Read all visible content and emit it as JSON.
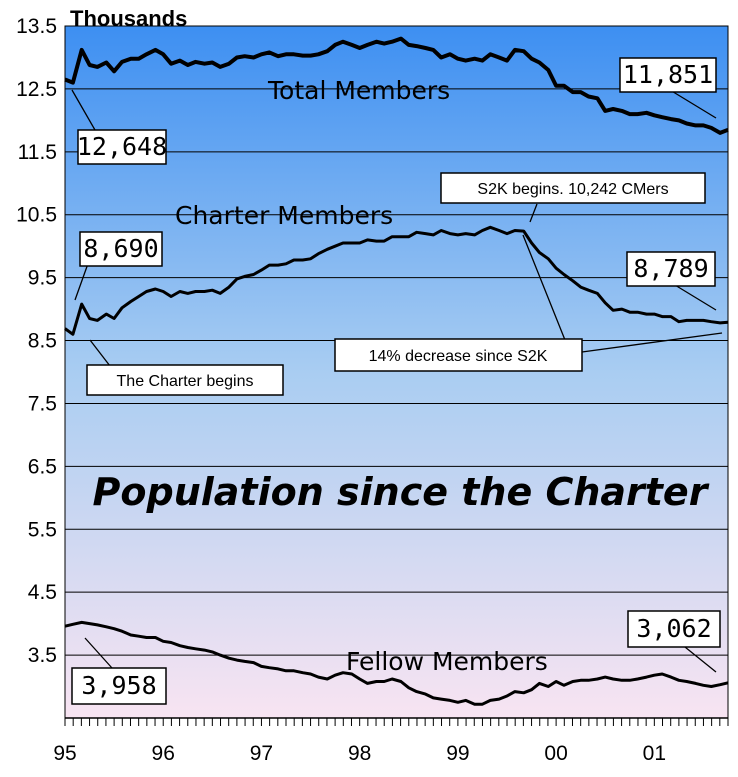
{
  "chart_data": {
    "type": "line",
    "unit_label": "Thousands",
    "title": "Population since the Charter",
    "ylim": [
      2.5,
      13.5
    ],
    "yticks": [
      "13.5",
      "12.5",
      "11.5",
      "10.5",
      "9.5",
      "8.5",
      "7.5",
      "6.5",
      "5.5",
      "4.5",
      "3.5"
    ],
    "ytick_values": [
      13.5,
      12.5,
      11.5,
      10.5,
      9.5,
      8.5,
      7.5,
      6.5,
      5.5,
      4.5,
      3.5
    ],
    "xticks": [
      "95",
      "96",
      "97",
      "98",
      "99",
      "00",
      "01"
    ],
    "xtick_values": [
      1995,
      1996,
      1997,
      1998,
      1999,
      2000,
      2001
    ],
    "xlim": [
      1995,
      2001.75
    ],
    "grid": true,
    "series": [
      {
        "name": "Total Members",
        "points": [
          [
            1995.0,
            12.65
          ],
          [
            1995.08,
            12.6
          ],
          [
            1995.17,
            13.12
          ],
          [
            1995.25,
            12.88
          ],
          [
            1995.33,
            12.85
          ],
          [
            1995.42,
            12.92
          ],
          [
            1995.5,
            12.78
          ],
          [
            1995.58,
            12.93
          ],
          [
            1995.67,
            12.98
          ],
          [
            1995.75,
            12.98
          ],
          [
            1995.83,
            13.05
          ],
          [
            1995.92,
            13.12
          ],
          [
            1996.0,
            13.05
          ],
          [
            1996.08,
            12.9
          ],
          [
            1996.17,
            12.95
          ],
          [
            1996.25,
            12.88
          ],
          [
            1996.33,
            12.93
          ],
          [
            1996.42,
            12.9
          ],
          [
            1996.5,
            12.92
          ],
          [
            1996.58,
            12.85
          ],
          [
            1996.67,
            12.9
          ],
          [
            1996.75,
            13.0
          ],
          [
            1996.83,
            13.02
          ],
          [
            1996.92,
            13.0
          ],
          [
            1997.0,
            13.05
          ],
          [
            1997.08,
            13.08
          ],
          [
            1997.17,
            13.02
          ],
          [
            1997.25,
            13.05
          ],
          [
            1997.33,
            13.05
          ],
          [
            1997.42,
            13.03
          ],
          [
            1997.5,
            13.03
          ],
          [
            1997.58,
            13.05
          ],
          [
            1997.67,
            13.1
          ],
          [
            1997.75,
            13.2
          ],
          [
            1997.83,
            13.25
          ],
          [
            1997.92,
            13.2
          ],
          [
            1998.0,
            13.15
          ],
          [
            1998.08,
            13.2
          ],
          [
            1998.17,
            13.25
          ],
          [
            1998.25,
            13.22
          ],
          [
            1998.33,
            13.25
          ],
          [
            1998.42,
            13.3
          ],
          [
            1998.5,
            13.2
          ],
          [
            1998.58,
            13.18
          ],
          [
            1998.67,
            13.15
          ],
          [
            1998.75,
            13.12
          ],
          [
            1998.83,
            13.0
          ],
          [
            1998.92,
            13.05
          ],
          [
            1999.0,
            12.98
          ],
          [
            1999.08,
            12.95
          ],
          [
            1999.17,
            12.98
          ],
          [
            1999.25,
            12.95
          ],
          [
            1999.33,
            13.05
          ],
          [
            1999.42,
            13.0
          ],
          [
            1999.5,
            12.95
          ],
          [
            1999.58,
            13.12
          ],
          [
            1999.67,
            13.1
          ],
          [
            1999.75,
            12.98
          ],
          [
            1999.83,
            12.92
          ],
          [
            1999.92,
            12.8
          ],
          [
            2000.0,
            12.55
          ],
          [
            2000.08,
            12.55
          ],
          [
            2000.17,
            12.45
          ],
          [
            2000.25,
            12.45
          ],
          [
            2000.33,
            12.38
          ],
          [
            2000.42,
            12.35
          ],
          [
            2000.5,
            12.15
          ],
          [
            2000.58,
            12.18
          ],
          [
            2000.67,
            12.15
          ],
          [
            2000.75,
            12.1
          ],
          [
            2000.83,
            12.1
          ],
          [
            2000.92,
            12.12
          ],
          [
            2001.0,
            12.08
          ],
          [
            2001.08,
            12.05
          ],
          [
            2001.17,
            12.02
          ],
          [
            2001.25,
            12.0
          ],
          [
            2001.33,
            11.95
          ],
          [
            2001.42,
            11.92
          ],
          [
            2001.5,
            11.92
          ],
          [
            2001.58,
            11.88
          ],
          [
            2001.67,
            11.8
          ],
          [
            2001.75,
            11.85
          ]
        ]
      },
      {
        "name": "Charter Members",
        "points": [
          [
            1995.0,
            8.69
          ],
          [
            1995.08,
            8.6
          ],
          [
            1995.17,
            9.08
          ],
          [
            1995.25,
            8.85
          ],
          [
            1995.33,
            8.82
          ],
          [
            1995.42,
            8.92
          ],
          [
            1995.5,
            8.85
          ],
          [
            1995.58,
            9.02
          ],
          [
            1995.67,
            9.12
          ],
          [
            1995.75,
            9.2
          ],
          [
            1995.83,
            9.28
          ],
          [
            1995.92,
            9.32
          ],
          [
            1996.0,
            9.28
          ],
          [
            1996.08,
            9.2
          ],
          [
            1996.17,
            9.28
          ],
          [
            1996.25,
            9.25
          ],
          [
            1996.33,
            9.28
          ],
          [
            1996.42,
            9.28
          ],
          [
            1996.5,
            9.3
          ],
          [
            1996.58,
            9.25
          ],
          [
            1996.67,
            9.35
          ],
          [
            1996.75,
            9.48
          ],
          [
            1996.83,
            9.52
          ],
          [
            1996.92,
            9.55
          ],
          [
            1997.0,
            9.62
          ],
          [
            1997.08,
            9.7
          ],
          [
            1997.17,
            9.7
          ],
          [
            1997.25,
            9.72
          ],
          [
            1997.33,
            9.78
          ],
          [
            1997.42,
            9.78
          ],
          [
            1997.5,
            9.8
          ],
          [
            1997.58,
            9.88
          ],
          [
            1997.67,
            9.95
          ],
          [
            1997.75,
            10.0
          ],
          [
            1997.83,
            10.05
          ],
          [
            1997.92,
            10.05
          ],
          [
            1998.0,
            10.05
          ],
          [
            1998.08,
            10.1
          ],
          [
            1998.17,
            10.08
          ],
          [
            1998.25,
            10.08
          ],
          [
            1998.33,
            10.15
          ],
          [
            1998.42,
            10.15
          ],
          [
            1998.5,
            10.15
          ],
          [
            1998.58,
            10.22
          ],
          [
            1998.67,
            10.2
          ],
          [
            1998.75,
            10.18
          ],
          [
            1998.83,
            10.25
          ],
          [
            1998.92,
            10.2
          ],
          [
            1999.0,
            10.18
          ],
          [
            1999.08,
            10.2
          ],
          [
            1999.17,
            10.18
          ],
          [
            1999.25,
            10.25
          ],
          [
            1999.33,
            10.3
          ],
          [
            1999.42,
            10.25
          ],
          [
            1999.5,
            10.2
          ],
          [
            1999.58,
            10.25
          ],
          [
            1999.67,
            10.24
          ],
          [
            1999.75,
            10.05
          ],
          [
            1999.83,
            9.9
          ],
          [
            1999.92,
            9.8
          ],
          [
            2000.0,
            9.65
          ],
          [
            2000.08,
            9.55
          ],
          [
            2000.17,
            9.45
          ],
          [
            2000.25,
            9.35
          ],
          [
            2000.33,
            9.3
          ],
          [
            2000.42,
            9.25
          ],
          [
            2000.5,
            9.1
          ],
          [
            2000.58,
            8.98
          ],
          [
            2000.67,
            9.0
          ],
          [
            2000.75,
            8.95
          ],
          [
            2000.83,
            8.95
          ],
          [
            2000.92,
            8.92
          ],
          [
            2001.0,
            8.92
          ],
          [
            2001.08,
            8.88
          ],
          [
            2001.17,
            8.88
          ],
          [
            2001.25,
            8.8
          ],
          [
            2001.33,
            8.82
          ],
          [
            2001.42,
            8.82
          ],
          [
            2001.5,
            8.82
          ],
          [
            2001.58,
            8.8
          ],
          [
            2001.67,
            8.78
          ],
          [
            2001.75,
            8.79
          ]
        ]
      },
      {
        "name": "Fellow Members",
        "points": [
          [
            1995.0,
            3.96
          ],
          [
            1995.08,
            3.99
          ],
          [
            1995.17,
            4.02
          ],
          [
            1995.25,
            4.0
          ],
          [
            1995.33,
            3.98
          ],
          [
            1995.42,
            3.95
          ],
          [
            1995.5,
            3.92
          ],
          [
            1995.58,
            3.88
          ],
          [
            1995.67,
            3.82
          ],
          [
            1995.75,
            3.8
          ],
          [
            1995.83,
            3.78
          ],
          [
            1995.92,
            3.78
          ],
          [
            1996.0,
            3.72
          ],
          [
            1996.08,
            3.7
          ],
          [
            1996.17,
            3.65
          ],
          [
            1996.25,
            3.62
          ],
          [
            1996.33,
            3.6
          ],
          [
            1996.42,
            3.58
          ],
          [
            1996.5,
            3.55
          ],
          [
            1996.58,
            3.5
          ],
          [
            1996.67,
            3.45
          ],
          [
            1996.75,
            3.42
          ],
          [
            1996.83,
            3.4
          ],
          [
            1996.92,
            3.38
          ],
          [
            1997.0,
            3.32
          ],
          [
            1997.08,
            3.3
          ],
          [
            1997.17,
            3.28
          ],
          [
            1997.25,
            3.25
          ],
          [
            1997.33,
            3.25
          ],
          [
            1997.42,
            3.22
          ],
          [
            1997.5,
            3.2
          ],
          [
            1997.58,
            3.15
          ],
          [
            1997.67,
            3.12
          ],
          [
            1997.75,
            3.18
          ],
          [
            1997.83,
            3.22
          ],
          [
            1997.92,
            3.2
          ],
          [
            1998.0,
            3.12
          ],
          [
            1998.08,
            3.05
          ],
          [
            1998.17,
            3.08
          ],
          [
            1998.25,
            3.08
          ],
          [
            1998.33,
            3.12
          ],
          [
            1998.42,
            3.08
          ],
          [
            1998.5,
            2.98
          ],
          [
            1998.58,
            2.92
          ],
          [
            1998.67,
            2.88
          ],
          [
            1998.75,
            2.82
          ],
          [
            1998.83,
            2.8
          ],
          [
            1998.92,
            2.78
          ],
          [
            1999.0,
            2.75
          ],
          [
            1999.08,
            2.78
          ],
          [
            1999.17,
            2.72
          ],
          [
            1999.25,
            2.72
          ],
          [
            1999.33,
            2.78
          ],
          [
            1999.42,
            2.8
          ],
          [
            1999.5,
            2.85
          ],
          [
            1999.58,
            2.92
          ],
          [
            1999.67,
            2.9
          ],
          [
            1999.75,
            2.95
          ],
          [
            1999.83,
            3.05
          ],
          [
            1999.92,
            3.0
          ],
          [
            2000.0,
            3.08
          ],
          [
            2000.08,
            3.02
          ],
          [
            2000.17,
            3.08
          ],
          [
            2000.25,
            3.1
          ],
          [
            2000.33,
            3.1
          ],
          [
            2000.42,
            3.12
          ],
          [
            2000.5,
            3.15
          ],
          [
            2000.58,
            3.12
          ],
          [
            2000.67,
            3.1
          ],
          [
            2000.75,
            3.1
          ],
          [
            2000.83,
            3.12
          ],
          [
            2000.92,
            3.15
          ],
          [
            2001.0,
            3.18
          ],
          [
            2001.08,
            3.2
          ],
          [
            2001.17,
            3.15
          ],
          [
            2001.25,
            3.1
          ],
          [
            2001.33,
            3.08
          ],
          [
            2001.42,
            3.05
          ],
          [
            2001.5,
            3.02
          ],
          [
            2001.58,
            3.0
          ],
          [
            2001.67,
            3.03
          ],
          [
            2001.75,
            3.06
          ]
        ]
      }
    ],
    "annotations": {
      "total_start": "12,648",
      "total_end": "11,851",
      "charter_start": "8,690",
      "charter_end": "8,789",
      "fellow_start": "3,958",
      "fellow_end": "3,062",
      "charter_begins": "The Charter begins",
      "s2k_begins": "S2K begins.  10,242 CMers",
      "decrease": "14% decrease since S2K"
    },
    "colors": {
      "bg_top": "#3d8ff2",
      "bg_mid": "#a9cdf2",
      "bg_bottom": "#f8e4f2",
      "line": "#000000"
    }
  }
}
